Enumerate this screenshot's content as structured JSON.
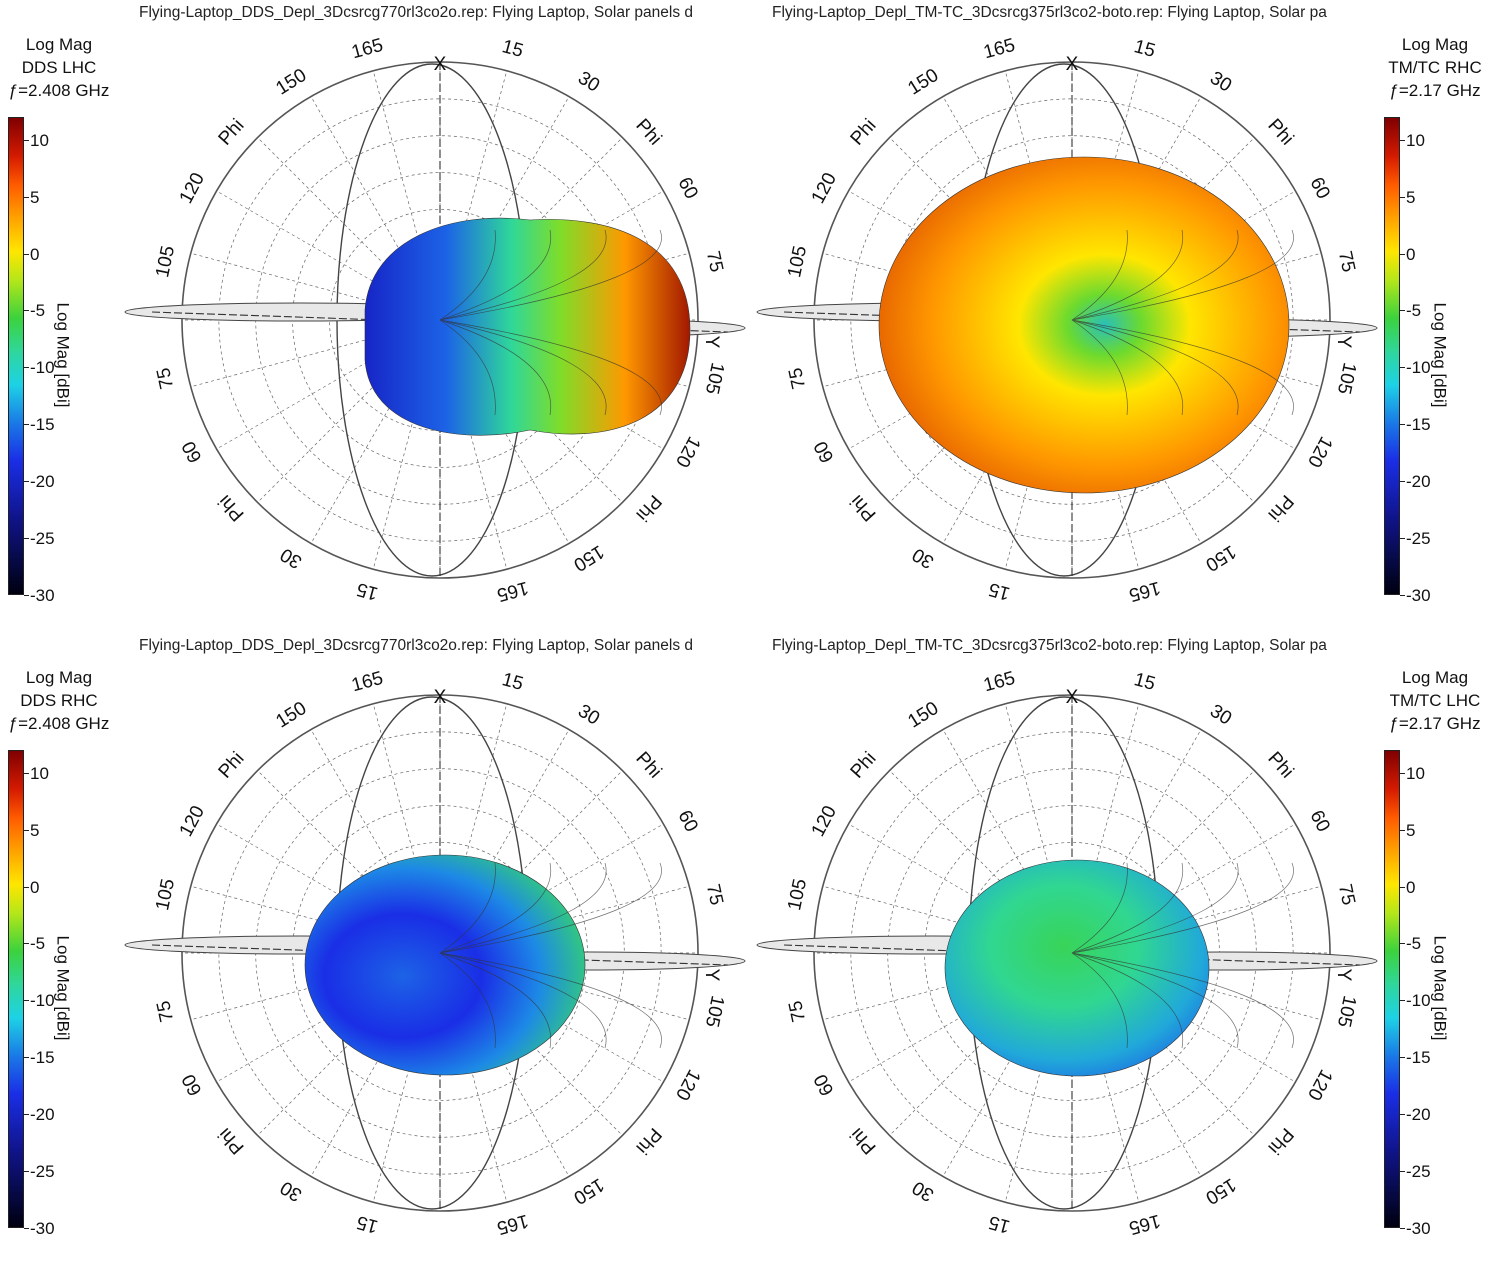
{
  "chart_data": [
    {
      "type": "polar-3d-radiation-pattern",
      "title": "Flying-Laptop_DDS_Depl_3Dcsrcg770rl3co2o.rep: Flying Laptop, Solar panels d",
      "legend": {
        "quantity": "Log Mag",
        "polarization": "DDS LHC",
        "frequency": "ƒ=2.408 GHz"
      },
      "colorbar": {
        "label": "Log Mag [dBi]",
        "ticks": [
          "10",
          "5",
          "0",
          "-5",
          "-10",
          "-15",
          "-20",
          "-25",
          "-30"
        ],
        "range": [
          -30,
          12
        ],
        "placement": "left"
      },
      "ring_labels": [
        "165",
        "150",
        "Phi",
        "120",
        "105",
        "75",
        "60",
        "Phi",
        "30",
        "15",
        "165",
        "150",
        "Phi",
        "120",
        "105",
        "75",
        "60",
        "Phi",
        "30",
        "15"
      ],
      "axis_labels": [
        "X",
        "Y"
      ]
    },
    {
      "type": "polar-3d-radiation-pattern",
      "title": "Flying-Laptop_Depl_TM-TC_3Dcsrcg375rl3co2-boto.rep: Flying Laptop, Solar pa",
      "legend": {
        "quantity": "Log Mag",
        "polarization": "TM/TC RHC",
        "frequency": "ƒ=2.17 GHz"
      },
      "colorbar": {
        "label": "Log Mag [dBi]",
        "ticks": [
          "10",
          "5",
          "0",
          "-5",
          "-10",
          "-15",
          "-20",
          "-25",
          "-30"
        ],
        "range": [
          -30,
          12
        ],
        "placement": "right"
      },
      "ring_labels": [
        "165",
        "150",
        "Phi",
        "120",
        "105",
        "75",
        "60",
        "Phi",
        "30",
        "15",
        "165",
        "150",
        "Phi",
        "120",
        "105",
        "75",
        "60",
        "Phi",
        "30",
        "15"
      ],
      "axis_labels": [
        "X",
        "Y"
      ]
    },
    {
      "type": "polar-3d-radiation-pattern",
      "title": "Flying-Laptop_DDS_Depl_3Dcsrcg770rl3co2o.rep: Flying Laptop, Solar panels d",
      "legend": {
        "quantity": "Log Mag",
        "polarization": "DDS RHC",
        "frequency": "ƒ=2.408 GHz"
      },
      "colorbar": {
        "label": "Log Mag [dBi]",
        "ticks": [
          "10",
          "5",
          "0",
          "-5",
          "-10",
          "-15",
          "-20",
          "-25",
          "-30"
        ],
        "range": [
          -30,
          12
        ],
        "placement": "left"
      },
      "ring_labels": [
        "165",
        "150",
        "Phi",
        "120",
        "105",
        "75",
        "60",
        "Phi",
        "30",
        "15",
        "165",
        "150",
        "Phi",
        "120",
        "105",
        "75",
        "60",
        "Phi",
        "30",
        "15"
      ],
      "axis_labels": [
        "X",
        "Y"
      ]
    },
    {
      "type": "polar-3d-radiation-pattern",
      "title": "Flying-Laptop_Depl_TM-TC_3Dcsrcg375rl3co2-boto.rep: Flying Laptop, Solar pa",
      "legend": {
        "quantity": "Log Mag",
        "polarization": "TM/TC LHC",
        "frequency": "ƒ=2.17 GHz"
      },
      "colorbar": {
        "label": "Log Mag [dBi]",
        "ticks": [
          "10",
          "5",
          "0",
          "-5",
          "-10",
          "-15",
          "-20",
          "-25",
          "-30"
        ],
        "range": [
          -30,
          12
        ],
        "placement": "right"
      },
      "ring_labels": [
        "165",
        "150",
        "Phi",
        "120",
        "105",
        "75",
        "60",
        "Phi",
        "30",
        "15",
        "165",
        "150",
        "Phi",
        "120",
        "105",
        "75",
        "60",
        "Phi",
        "30",
        "15"
      ],
      "axis_labels": [
        "X",
        "Y"
      ]
    }
  ],
  "colors": {
    "max": "#800000",
    "high": "#ff5a00",
    "mid": "#ffe600",
    "low_mid": "#3cd23c",
    "low": "#1ed2e6",
    "min": "#10148a"
  }
}
